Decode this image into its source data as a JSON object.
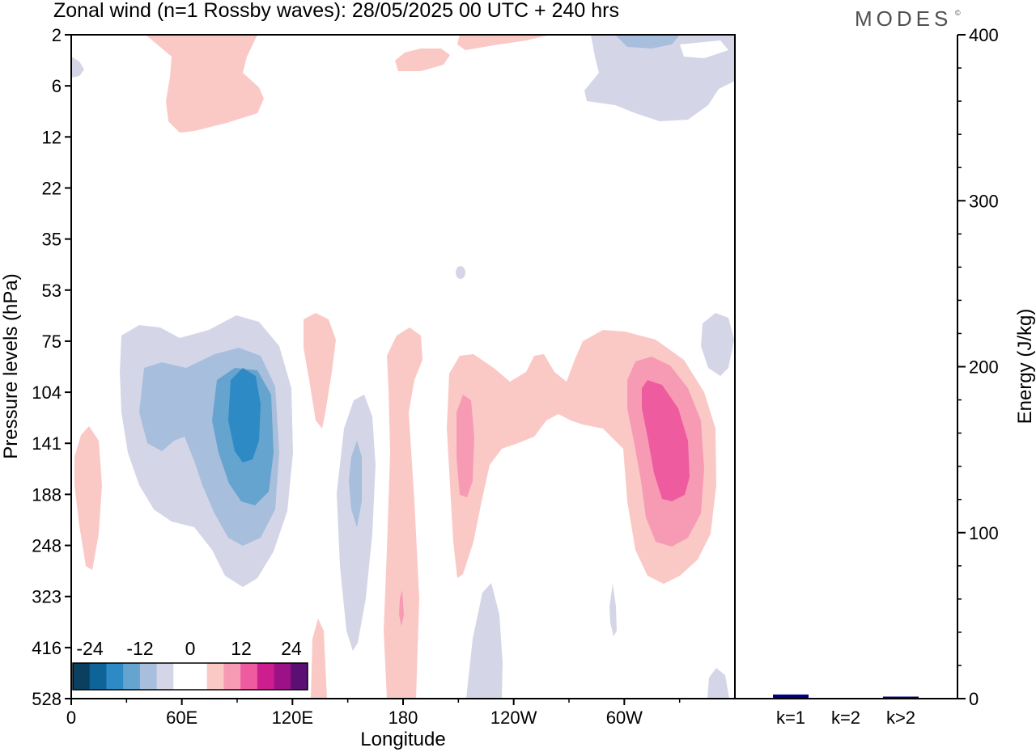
{
  "header": {
    "title": "Zonal wind (n=1 Rossby waves):  28/05/2025  00 UTC  + 240 hrs",
    "logo_text": "MODES",
    "logo_mark": "©"
  },
  "chart_data": [
    {
      "type": "heatmap",
      "xlabel": "Longitude",
      "ylabel": "Pressure levels (hPa)",
      "x_ticks": [
        "0",
        "60E",
        "120E",
        "180",
        "120W",
        "60W"
      ],
      "x_tick_degrees": [
        0,
        60,
        120,
        180,
        240,
        300
      ],
      "xlim_degrees": [
        0,
        360
      ],
      "y_ticks": [
        "2",
        "6",
        "12",
        "22",
        "35",
        "53",
        "75",
        "104",
        "141",
        "188",
        "248",
        "323",
        "416",
        "528"
      ],
      "colorbar": {
        "tick_labels": [
          "-24",
          "-12",
          "0",
          "12",
          "24"
        ],
        "colors": [
          "#0b3f5f",
          "#0e6399",
          "#2e8ac4",
          "#64a4cf",
          "#a7bedc",
          "#d4d6e8",
          "#ffffff",
          "#ffffff",
          "#fac9c6",
          "#f79bb5",
          "#ee5c9f",
          "#cc1e8e",
          "#9c1185",
          "#5c0f73"
        ]
      },
      "features": [
        {
          "sign": "negative",
          "peak_level": "-24",
          "region": "blue wave train centred near 90E, 104–248 hPa"
        },
        {
          "sign": "positive",
          "peak_level": "12",
          "region": "pink anomaly 60W–40W, 104–248 hPa"
        },
        {
          "sign": "positive",
          "peak_level": "6",
          "region": "pink anomaly near 150W–120W, 104–188 hPa"
        },
        {
          "sign": "negative",
          "peak_level": "-6",
          "region": "blue anomaly near 45W–20W, 2–12 hPa"
        },
        {
          "sign": "positive",
          "peak_level": "3",
          "region": "pink anomaly near 55E–105E, 2–12 hPa"
        }
      ]
    },
    {
      "type": "bar",
      "ylabel": "Energy (J/kg)",
      "categories": [
        "k=1",
        "k=2",
        "k>2"
      ],
      "values": [
        2,
        0,
        0.5
      ],
      "ylim": [
        0,
        400
      ],
      "y_ticks": [
        "0",
        "100",
        "200",
        "300",
        "400"
      ],
      "bar_color": "#00007f"
    }
  ]
}
